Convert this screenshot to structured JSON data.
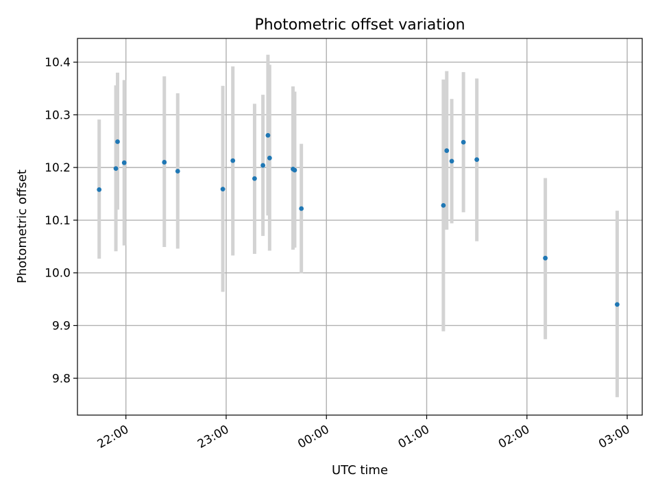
{
  "chart_data": {
    "type": "scatter",
    "title": "Photometric offset variation",
    "xlabel": "UTC time",
    "ylabel": "Photometric offset",
    "x_type": "time",
    "xlim": [
      "21:31",
      "03:09"
    ],
    "ylim": [
      9.73,
      10.445
    ],
    "x_ticks": [
      "22:00",
      "23:00",
      "00:00",
      "01:00",
      "02:00",
      "03:00"
    ],
    "y_ticks": [
      "9.8",
      "9.9",
      "10.0",
      "10.1",
      "10.2",
      "10.3",
      "10.4"
    ],
    "grid": true,
    "colors": {
      "point": "#1f77b4",
      "errorbar": "#d3d3d3",
      "grid": "#b0b0b0"
    },
    "points": [
      {
        "x": "21:44",
        "y": 10.158,
        "ylow": 10.027,
        "yhigh": 10.291
      },
      {
        "x": "21:54",
        "y": 10.198,
        "ylow": 10.041,
        "yhigh": 10.356
      },
      {
        "x": "21:55",
        "y": 10.249,
        "ylow": 10.12,
        "yhigh": 10.38
      },
      {
        "x": "21:59",
        "y": 10.209,
        "ylow": 10.052,
        "yhigh": 10.366
      },
      {
        "x": "22:23",
        "y": 10.21,
        "ylow": 10.049,
        "yhigh": 10.373
      },
      {
        "x": "22:31",
        "y": 10.193,
        "ylow": 10.046,
        "yhigh": 10.341
      },
      {
        "x": "22:58",
        "y": 10.159,
        "ylow": 9.964,
        "yhigh": 10.355
      },
      {
        "x": "23:04",
        "y": 10.213,
        "ylow": 10.033,
        "yhigh": 10.392
      },
      {
        "x": "23:17",
        "y": 10.179,
        "ylow": 10.036,
        "yhigh": 10.321
      },
      {
        "x": "23:22",
        "y": 10.204,
        "ylow": 10.07,
        "yhigh": 10.338
      },
      {
        "x": "23:25",
        "y": 10.261,
        "ylow": 10.109,
        "yhigh": 10.414
      },
      {
        "x": "23:26",
        "y": 10.218,
        "ylow": 10.042,
        "yhigh": 10.395
      },
      {
        "x": "23:40",
        "y": 10.197,
        "ylow": 10.044,
        "yhigh": 10.354
      },
      {
        "x": "23:41",
        "y": 10.195,
        "ylow": 10.048,
        "yhigh": 10.344
      },
      {
        "x": "23:45",
        "y": 10.122,
        "ylow": 9.999,
        "yhigh": 10.245
      },
      {
        "x": "01:10",
        "y": 10.128,
        "ylow": 9.889,
        "yhigh": 10.367
      },
      {
        "x": "01:12",
        "y": 10.232,
        "ylow": 10.082,
        "yhigh": 10.383
      },
      {
        "x": "01:15",
        "y": 10.212,
        "ylow": 10.094,
        "yhigh": 10.33
      },
      {
        "x": "01:22",
        "y": 10.248,
        "ylow": 10.115,
        "yhigh": 10.381
      },
      {
        "x": "01:30",
        "y": 10.215,
        "ylow": 10.06,
        "yhigh": 10.369
      },
      {
        "x": "02:11",
        "y": 10.028,
        "ylow": 9.874,
        "yhigh": 10.18
      },
      {
        "x": "02:54",
        "y": 9.94,
        "ylow": 9.764,
        "yhigh": 10.118
      }
    ]
  }
}
